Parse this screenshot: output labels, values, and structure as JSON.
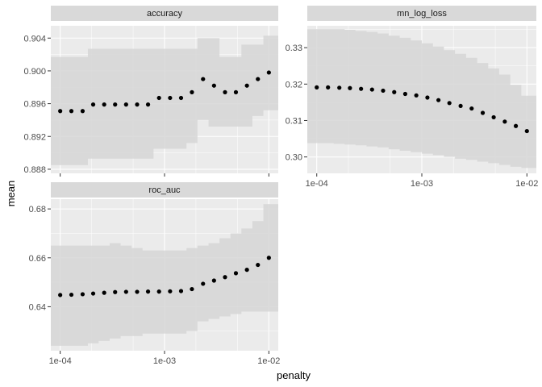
{
  "x_axis_title": "penalty",
  "y_axis_title": "mean",
  "colors": {
    "panel_bg": "#ebebeb",
    "strip_bg": "#d9d9d9",
    "grid": "#ffffff",
    "ribbon": "#d6d6d6",
    "point": "#000000"
  },
  "chart_data": [
    {
      "type": "scatter",
      "title": "accuracy",
      "x_scale": "log10",
      "x": [
        0.0001,
        0.000128,
        0.000164,
        0.000207,
        0.000264,
        0.000336,
        0.000428,
        0.000546,
        0.000695,
        0.000886,
        0.00113,
        0.00144,
        0.00183,
        0.00234,
        0.00298,
        0.0038,
        0.00483,
        0.00616,
        0.00785,
        0.01
      ],
      "y": [
        0.8951,
        0.8951,
        0.8951,
        0.8959,
        0.8959,
        0.8959,
        0.8959,
        0.8959,
        0.8959,
        0.8967,
        0.8967,
        0.8967,
        0.8974,
        0.899,
        0.8982,
        0.8974,
        0.8974,
        0.8982,
        0.899,
        0.8998
      ],
      "lower": [
        0.8885,
        0.8885,
        0.8885,
        0.8893,
        0.8893,
        0.8893,
        0.8893,
        0.8893,
        0.8893,
        0.8905,
        0.8905,
        0.8905,
        0.8912,
        0.894,
        0.8932,
        0.8932,
        0.8932,
        0.8932,
        0.8945,
        0.8952
      ],
      "upper": [
        0.9017,
        0.9017,
        0.9017,
        0.9027,
        0.9027,
        0.9027,
        0.9027,
        0.9027,
        0.9027,
        0.9027,
        0.9027,
        0.9027,
        0.9027,
        0.904,
        0.904,
        0.9017,
        0.9017,
        0.9032,
        0.9032,
        0.9043
      ],
      "xlim": [
        0.0001,
        0.01
      ],
      "ylim": [
        0.8875,
        0.9055
      ],
      "x_ticks": [],
      "y_ticks": [
        {
          "value": 0.888,
          "label": "0.888"
        },
        {
          "value": 0.892,
          "label": "0.892"
        },
        {
          "value": 0.896,
          "label": "0.896"
        },
        {
          "value": 0.9,
          "label": "0.900"
        },
        {
          "value": 0.904,
          "label": "0.904"
        }
      ],
      "grid": true
    },
    {
      "type": "scatter",
      "title": "mn_log_loss",
      "x_scale": "log10",
      "x": [
        0.0001,
        0.000128,
        0.000164,
        0.000207,
        0.000264,
        0.000336,
        0.000428,
        0.000546,
        0.000695,
        0.000886,
        0.00113,
        0.00144,
        0.00183,
        0.00234,
        0.00298,
        0.0038,
        0.00483,
        0.00616,
        0.00785,
        0.01
      ],
      "y": [
        0.3191,
        0.3191,
        0.319,
        0.3189,
        0.3187,
        0.3185,
        0.3182,
        0.3178,
        0.3173,
        0.3169,
        0.3163,
        0.3156,
        0.3148,
        0.314,
        0.3133,
        0.3121,
        0.3109,
        0.3097,
        0.3085,
        0.3071
      ],
      "lower": [
        0.3038,
        0.3038,
        0.3036,
        0.3034,
        0.3032,
        0.3029,
        0.3026,
        0.3021,
        0.3017,
        0.3013,
        0.3009,
        0.3005,
        0.3,
        0.2995,
        0.2992,
        0.2987,
        0.2983,
        0.2978,
        0.2973,
        0.297
      ],
      "upper": [
        0.3351,
        0.3351,
        0.3351,
        0.3349,
        0.3346,
        0.3343,
        0.3339,
        0.3333,
        0.3327,
        0.332,
        0.3312,
        0.3303,
        0.3293,
        0.3283,
        0.3272,
        0.3258,
        0.3243,
        0.3226,
        0.3198,
        0.3168
      ],
      "xlim": [
        0.0001,
        0.01
      ],
      "ylim": [
        0.2955,
        0.336
      ],
      "x_ticks": [
        {
          "value": 0.0001,
          "label": "1e-04"
        },
        {
          "value": 0.001,
          "label": "1e-03"
        },
        {
          "value": 0.01,
          "label": "1e-02"
        }
      ],
      "y_ticks": [
        {
          "value": 0.3,
          "label": "0.30"
        },
        {
          "value": 0.31,
          "label": "0.31"
        },
        {
          "value": 0.32,
          "label": "0.32"
        },
        {
          "value": 0.33,
          "label": "0.33"
        }
      ],
      "grid": true
    },
    {
      "type": "scatter",
      "title": "roc_auc",
      "x_scale": "log10",
      "x": [
        0.0001,
        0.000128,
        0.000164,
        0.000207,
        0.000264,
        0.000336,
        0.000428,
        0.000546,
        0.000695,
        0.000886,
        0.00113,
        0.00144,
        0.00183,
        0.00234,
        0.00298,
        0.0038,
        0.00483,
        0.00616,
        0.00785,
        0.01
      ],
      "y": [
        0.6448,
        0.6449,
        0.6451,
        0.6454,
        0.6457,
        0.646,
        0.6461,
        0.6461,
        0.6462,
        0.6462,
        0.6463,
        0.6464,
        0.6472,
        0.6494,
        0.6507,
        0.6521,
        0.6537,
        0.6551,
        0.6571,
        0.66
      ],
      "lower": [
        0.624,
        0.624,
        0.624,
        0.625,
        0.626,
        0.627,
        0.628,
        0.628,
        0.629,
        0.629,
        0.629,
        0.629,
        0.63,
        0.634,
        0.635,
        0.636,
        0.637,
        0.638,
        0.638,
        0.638
      ],
      "upper": [
        0.665,
        0.665,
        0.665,
        0.665,
        0.665,
        0.666,
        0.665,
        0.664,
        0.663,
        0.663,
        0.663,
        0.663,
        0.664,
        0.665,
        0.666,
        0.668,
        0.67,
        0.672,
        0.675,
        0.682
      ],
      "xlim": [
        0.0001,
        0.01
      ],
      "ylim": [
        0.622,
        0.684
      ],
      "x_ticks": [
        {
          "value": 0.0001,
          "label": "1e-04"
        },
        {
          "value": 0.001,
          "label": "1e-03"
        },
        {
          "value": 0.01,
          "label": "1e-02"
        }
      ],
      "y_ticks": [
        {
          "value": 0.64,
          "label": "0.64"
        },
        {
          "value": 0.66,
          "label": "0.66"
        },
        {
          "value": 0.68,
          "label": "0.68"
        }
      ],
      "grid": true
    }
  ]
}
